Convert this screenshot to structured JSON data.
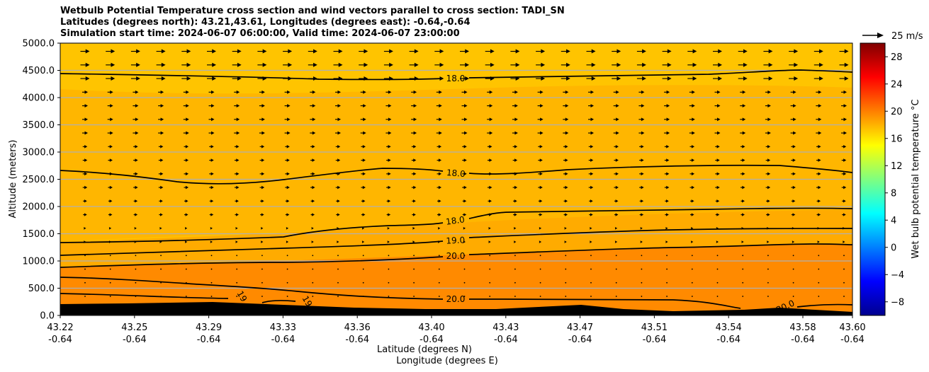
{
  "chart_data": {
    "type": "heatmap",
    "title_lines": [
      "Wetbulb Potential Temperature cross section and wind vectors parallel to cross section: TADI_SN",
      "Latitudes (degrees north): 43.21,43.61, Longitudes (degrees east): -0.64,-0.64",
      "Simulation start time: 2024-06-07 06:00:00, Valid time: 2024-06-07 23:00:00"
    ],
    "ylabel": "Altitude (meters)",
    "xlabel_line1": "Latitude (degrees N)",
    "xlabel_line2": "Longitude (degrees E)",
    "x_lat_ticks": [
      "43.22",
      "43.25",
      "43.29",
      "43.33",
      "43.36",
      "43.40",
      "43.43",
      "43.47",
      "43.51",
      "43.54",
      "43.58",
      "43.60"
    ],
    "x_lon_ticks": [
      "-0.64",
      "-0.64",
      "-0.64",
      "-0.64",
      "-0.64",
      "-0.64",
      "-0.64",
      "-0.64",
      "-0.64",
      "-0.64",
      "-0.64",
      "-0.64"
    ],
    "y_ticks": [
      "0.0",
      "500.0",
      "1000.0",
      "1500.0",
      "2000.0",
      "2500.0",
      "3000.0",
      "3500.0",
      "4000.0",
      "4500.0",
      "5000.0"
    ],
    "ylim": [
      0,
      5000
    ],
    "colorbar": {
      "label": "Wet bulb potential temperature °C",
      "ticks": [
        "28",
        "24",
        "20",
        "16",
        "12",
        "8",
        "4",
        "0",
        "−4",
        "−8"
      ],
      "range": [
        -10,
        30
      ],
      "colormap": "jet"
    },
    "quiver_key": "25 m/s",
    "contour_labels": [
      "18.0",
      "18.0",
      "18.0",
      "19.0",
      "20.0",
      "20.0",
      "19",
      "19",
      "20.0"
    ],
    "fill_colors": {
      "upper": "#ffc400",
      "middle": "#ffab00",
      "lower": "#ff8a00",
      "terrain": "#000000"
    }
  }
}
